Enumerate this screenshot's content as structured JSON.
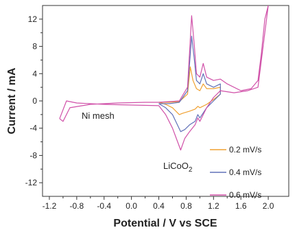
{
  "chart_data": {
    "type": "line",
    "xlabel": "Potential / V vs SCE",
    "ylabel": "Current / mA",
    "xlim": [
      -1.3,
      2.3
    ],
    "ylim": [
      -14,
      14
    ],
    "xticks": [
      -1.2,
      -0.8,
      -0.4,
      0.0,
      0.4,
      0.8,
      1.2,
      1.6,
      2.0
    ],
    "yticks": [
      12,
      8,
      4,
      0,
      -4,
      -8,
      -12
    ],
    "xtick_labels": [
      "-1.2",
      "-0.8",
      "-0.4",
      "0.0",
      "0.4",
      "0.8",
      "1.2",
      "1.6",
      "2.0"
    ],
    "ytick_labels": [
      "12",
      "8",
      "4",
      "0",
      "-4",
      "-8",
      "-12"
    ],
    "grid": false,
    "legend_position": "bottom-right",
    "annotations": {
      "ni_mesh": "Ni mesh",
      "licoo2_base": "LiCoO",
      "licoo2_sub": "2"
    },
    "series": [
      {
        "name": "0.2 mV/s",
        "color": "#f0a030",
        "x": [
          0.4,
          0.55,
          0.7,
          0.82,
          0.86,
          0.9,
          0.95,
          1.0,
          1.05,
          1.1,
          1.2,
          1.3,
          1.3,
          1.2,
          1.1,
          1.0,
          0.97,
          0.93,
          0.85,
          0.75,
          0.7,
          0.6,
          0.5,
          0.4
        ],
        "y": [
          -0.2,
          -0.2,
          -0.1,
          1.0,
          5.0,
          3.0,
          1.8,
          1.5,
          2.5,
          1.8,
          1.8,
          2.0,
          1.0,
          0.2,
          -0.5,
          -1.0,
          -0.8,
          -1.2,
          -1.5,
          -1.8,
          -2.0,
          -1.0,
          -0.5,
          -0.2
        ]
      },
      {
        "name": "0.4 mV/s",
        "color": "#6070b8",
        "x": [
          0.4,
          0.55,
          0.7,
          0.82,
          0.88,
          0.92,
          0.95,
          1.0,
          1.05,
          1.1,
          1.2,
          1.3,
          1.3,
          1.2,
          1.1,
          1.0,
          0.97,
          0.93,
          0.85,
          0.78,
          0.72,
          0.6,
          0.5,
          0.4
        ],
        "y": [
          -0.4,
          -0.4,
          -0.2,
          1.5,
          9.5,
          6.0,
          3.0,
          2.5,
          4.0,
          2.5,
          2.0,
          2.5,
          1.0,
          0.0,
          -1.0,
          -2.5,
          -2.0,
          -3.0,
          -3.5,
          -4.2,
          -4.5,
          -2.0,
          -1.0,
          -0.4
        ]
      },
      {
        "name": "0.6 mV/s",
        "color": "#d050a8",
        "x": [
          -1.05,
          -1.0,
          -0.9,
          -0.6,
          -0.2,
          0.2,
          0.4,
          0.55,
          0.7,
          0.82,
          0.88,
          0.92,
          0.95,
          1.0,
          1.05,
          1.1,
          1.2,
          1.3,
          1.4,
          1.6,
          1.75,
          1.85,
          1.9,
          1.95,
          2.0,
          2.0,
          1.85,
          1.7,
          1.5,
          1.3,
          1.2,
          1.1,
          1.0,
          0.97,
          0.93,
          0.85,
          0.78,
          0.72,
          0.6,
          0.5,
          0.4,
          0.0,
          -0.4,
          -0.8,
          -0.95,
          -1.05
        ],
        "y": [
          -2.6,
          -3.0,
          -1.0,
          -0.5,
          -0.3,
          -0.2,
          -0.2,
          -0.1,
          0.0,
          2.0,
          12.5,
          8.0,
          4.0,
          3.5,
          5.5,
          3.5,
          3.0,
          3.2,
          2.5,
          1.5,
          1.8,
          3.0,
          7.0,
          12.0,
          14.0,
          14.0,
          2.0,
          1.5,
          1.2,
          1.5,
          0.5,
          -1.0,
          -3.0,
          -2.5,
          -3.5,
          -4.5,
          -5.5,
          -7.2,
          -4.0,
          -2.0,
          -0.7,
          -0.6,
          -0.5,
          -0.3,
          0.0,
          -2.6
        ]
      }
    ]
  }
}
